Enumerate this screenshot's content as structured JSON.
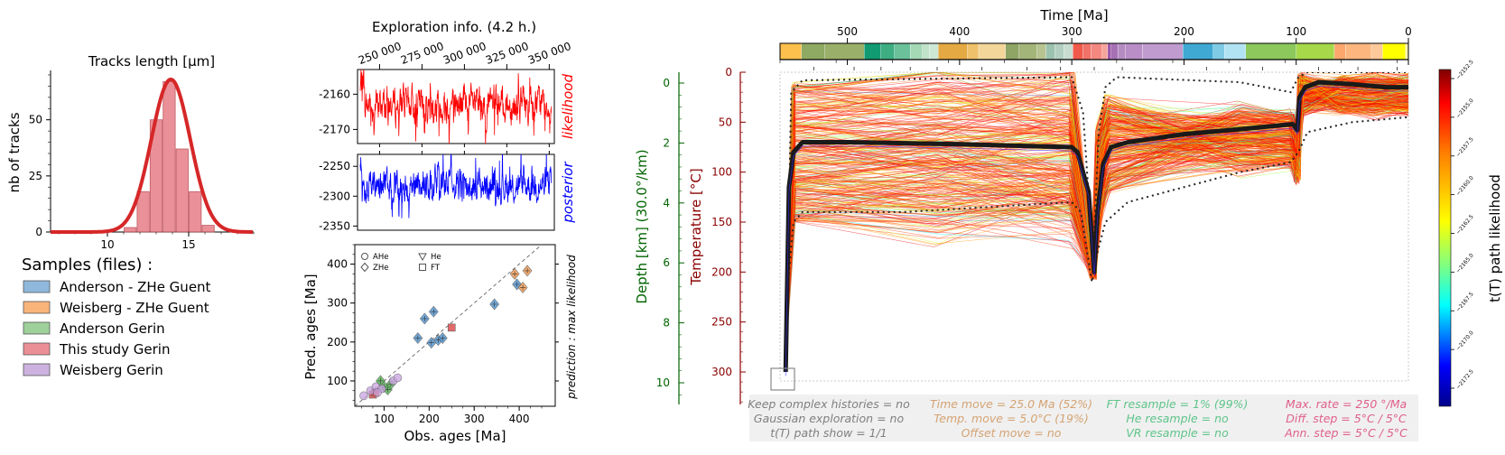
{
  "colors": {
    "red": "#d62728",
    "likelihood": "#ff0000",
    "posterior": "#0000ff",
    "depth_axis": "#006400",
    "temp_axis": "#8b0000",
    "best_path": "#1a1a1a",
    "settings1": "#7f7f7f",
    "settings2": "#d4a373",
    "settings3": "#5ec48a",
    "settings4": "#e0608a"
  },
  "chart_data": [
    {
      "id": "tracks",
      "type": "bar",
      "title": "Tracks length [µm]",
      "xlabel": "",
      "ylabel": "nb of tracks",
      "xlim": [
        6.5,
        19
      ],
      "ylim": [
        0,
        72
      ],
      "xticks": [
        10,
        15
      ],
      "yticks": [
        0,
        25,
        50
      ],
      "bins": [
        {
          "x0": 11.0,
          "x1": 11.8,
          "value": 2
        },
        {
          "x0": 11.8,
          "x1": 12.6,
          "value": 18
        },
        {
          "x0": 12.6,
          "x1": 13.4,
          "value": 50
        },
        {
          "x0": 13.4,
          "x1": 14.2,
          "value": 67
        },
        {
          "x0": 14.2,
          "x1": 15.0,
          "value": 37
        },
        {
          "x0": 15.0,
          "x1": 15.8,
          "value": 18
        },
        {
          "x0": 15.8,
          "x1": 16.6,
          "value": 3
        }
      ],
      "fit": {
        "type": "normal",
        "mean": 13.9,
        "peak": 68,
        "sigma": 1.2
      }
    },
    {
      "id": "exploration",
      "type": "line",
      "title": "Exploration info. (4.2 h.)",
      "xlim": [
        237000,
        353000
      ],
      "xticks": [
        250000,
        275000,
        300000,
        325000,
        350000
      ],
      "xtick_labels": [
        "250 000",
        "275 000",
        "300 000",
        "325 000",
        "350 000"
      ],
      "series": [
        {
          "name": "likelihood",
          "ylim": [
            -2174,
            -2153
          ],
          "yticks": [
            -2160,
            -2170
          ],
          "mean": -2163,
          "noise": 4
        },
        {
          "name": "posterior",
          "ylim": [
            -2357,
            -2230
          ],
          "yticks": [
            -2250,
            -2300,
            -2350
          ],
          "mean": -2282,
          "noise": 22
        }
      ]
    },
    {
      "id": "ages",
      "type": "scatter",
      "xlabel": "Obs. ages [Ma]",
      "ylabel": "Pred. ages [Ma]",
      "right_label": "prediction : max likelihood",
      "xlim": [
        35,
        480
      ],
      "ylim": [
        35,
        450
      ],
      "xticks": [
        100,
        200,
        300,
        400
      ],
      "yticks": [
        100,
        200,
        300,
        400
      ],
      "legend": [
        "AHe",
        "He",
        "ZHe",
        "FT"
      ],
      "series": [
        {
          "name": "Anderson - ZHe Guent",
          "color": "#5a9bd4",
          "marker": "diamond",
          "points": [
            [
              175,
              210
            ],
            [
              190,
              260
            ],
            [
              205,
              198
            ],
            [
              210,
              278
            ],
            [
              220,
              205
            ],
            [
              230,
              210
            ],
            [
              345,
              297
            ],
            [
              395,
              348
            ]
          ]
        },
        {
          "name": "Weisberg - ZHe Guent",
          "color": "#f5a05a",
          "marker": "diamond",
          "points": [
            [
              390,
              375
            ],
            [
              408,
              340
            ],
            [
              418,
              383
            ]
          ]
        },
        {
          "name": "Anderson Gerin",
          "color": "#5cb85c",
          "marker": "diamond",
          "points": [
            [
              92,
              100
            ],
            [
              100,
              85
            ],
            [
              108,
              78
            ],
            [
              115,
              92
            ]
          ]
        },
        {
          "name": "This study Gerin",
          "color": "#e05a5a",
          "marker": "square",
          "points": [
            [
              250,
              237
            ],
            [
              75,
              65
            ],
            [
              80,
              70
            ]
          ]
        },
        {
          "name": "Weisberg Gerin",
          "color": "#c8a2e0",
          "marker": "circle",
          "points": [
            [
              55,
              62
            ],
            [
              70,
              75
            ],
            [
              82,
              85
            ],
            [
              95,
              80
            ],
            [
              120,
              100
            ],
            [
              130,
              108
            ],
            [
              85,
              70
            ]
          ]
        }
      ]
    },
    {
      "id": "tT",
      "type": "line",
      "title": "Time [Ma]",
      "ylabel_temp": "Temperature [°C]",
      "ylabel_depth": "Depth [km] (30.0°/km)",
      "colorbar_label": "t(T) path likelihood",
      "colorbar_ticks": [
        "−2152.5",
        "−2155.0",
        "−2157.5",
        "−2160.0",
        "−2162.5",
        "−2165.0",
        "−2167.5",
        "−2170.0",
        "−2172.5"
      ],
      "xlim": [
        560,
        0
      ],
      "ylim": [
        320,
        0
      ],
      "xticks": [
        500,
        400,
        300,
        200,
        100,
        0
      ],
      "yticks": [
        0,
        50,
        100,
        150,
        200,
        250,
        300
      ],
      "depth_ticks": [
        0,
        2,
        4,
        6,
        8,
        10
      ],
      "best_path": [
        [
          555,
          300
        ],
        [
          552,
          115
        ],
        [
          548,
          80
        ],
        [
          540,
          70
        ],
        [
          500,
          70
        ],
        [
          400,
          72
        ],
        [
          300,
          75
        ],
        [
          295,
          80
        ],
        [
          285,
          120
        ],
        [
          280,
          200
        ],
        [
          277,
          140
        ],
        [
          272,
          92
        ],
        [
          265,
          75
        ],
        [
          250,
          70
        ],
        [
          200,
          62
        ],
        [
          150,
          57
        ],
        [
          103,
          52
        ],
        [
          99,
          58
        ],
        [
          97,
          25
        ],
        [
          92,
          15
        ],
        [
          80,
          10
        ],
        [
          50,
          12
        ],
        [
          20,
          15
        ],
        [
          0,
          15
        ]
      ],
      "upper_envelope": [
        [
          554,
          250
        ],
        [
          550,
          20
        ],
        [
          540,
          8
        ],
        [
          300,
          5
        ],
        [
          290,
          40
        ],
        [
          281,
          190
        ],
        [
          276,
          60
        ],
        [
          270,
          15
        ],
        [
          260,
          5
        ],
        [
          150,
          10
        ],
        [
          105,
          20
        ],
        [
          98,
          5
        ],
        [
          90,
          0
        ],
        [
          0,
          0
        ]
      ],
      "lower_envelope": [
        [
          555,
          300
        ],
        [
          552,
          200
        ],
        [
          548,
          150
        ],
        [
          540,
          140
        ],
        [
          450,
          140
        ],
        [
          300,
          130
        ],
        [
          292,
          140
        ],
        [
          282,
          210
        ],
        [
          277,
          180
        ],
        [
          270,
          150
        ],
        [
          250,
          130
        ],
        [
          150,
          100
        ],
        [
          105,
          90
        ],
        [
          98,
          80
        ],
        [
          90,
          60
        ],
        [
          50,
          50
        ],
        [
          0,
          45
        ]
      ],
      "timescale": [
        {
          "t0": 560,
          "t1": 541,
          "color": "#fdc04c"
        },
        {
          "t0": 541,
          "t1": 520,
          "color": "#8faa63"
        },
        {
          "t0": 520,
          "t1": 485,
          "color": "#9aaf6a"
        },
        {
          "t0": 485,
          "t1": 470,
          "color": "#129b73"
        },
        {
          "t0": 470,
          "t1": 458,
          "color": "#3eae82"
        },
        {
          "t0": 458,
          "t1": 444,
          "color": "#6ac19a"
        },
        {
          "t0": 444,
          "t1": 433,
          "color": "#a5d8b5"
        },
        {
          "t0": 433,
          "t1": 427,
          "color": "#bfe2c9"
        },
        {
          "t0": 427,
          "t1": 419,
          "color": "#cde8d5"
        },
        {
          "t0": 419,
          "t1": 393,
          "color": "#e5a943"
        },
        {
          "t0": 393,
          "t1": 383,
          "color": "#efc16b"
        },
        {
          "t0": 383,
          "t1": 359,
          "color": "#f2d69a"
        },
        {
          "t0": 359,
          "t1": 347,
          "color": "#8ea565"
        },
        {
          "t0": 347,
          "t1": 331,
          "color": "#a4b57a"
        },
        {
          "t0": 331,
          "t1": 323,
          "color": "#b7c491"
        },
        {
          "t0": 323,
          "t1": 315,
          "color": "#9bc2ae"
        },
        {
          "t0": 315,
          "t1": 307,
          "color": "#b2cfc1"
        },
        {
          "t0": 307,
          "t1": 299,
          "color": "#c8dcd0"
        },
        {
          "t0": 299,
          "t1": 290,
          "color": "#ef5a4b"
        },
        {
          "t0": 290,
          "t1": 283,
          "color": "#f07268"
        },
        {
          "t0": 283,
          "t1": 273,
          "color": "#f28880"
        },
        {
          "t0": 273,
          "t1": 268,
          "color": "#f6a49b"
        },
        {
          "t0": 268,
          "t1": 265,
          "color": "#9b55a8"
        },
        {
          "t0": 265,
          "t1": 259,
          "color": "#a670b4"
        },
        {
          "t0": 259,
          "t1": 252,
          "color": "#b58cc2"
        },
        {
          "t0": 252,
          "t1": 237,
          "color": "#b98ec6"
        },
        {
          "t0": 237,
          "t1": 201,
          "color": "#bf9bd0"
        },
        {
          "t0": 201,
          "t1": 174,
          "color": "#3fa9d3"
        },
        {
          "t0": 174,
          "t1": 164,
          "color": "#7fcbe6"
        },
        {
          "t0": 164,
          "t1": 145,
          "color": "#b2e3f3"
        },
        {
          "t0": 145,
          "t1": 100,
          "color": "#8cc85b"
        },
        {
          "t0": 100,
          "t1": 66,
          "color": "#a6d84a"
        },
        {
          "t0": 66,
          "t1": 56,
          "color": "#fda76c"
        },
        {
          "t0": 56,
          "t1": 33,
          "color": "#fdb77e"
        },
        {
          "t0": 33,
          "t1": 23,
          "color": "#fdc89a"
        },
        {
          "t0": 23,
          "t1": 2.6,
          "color": "#ffff00"
        },
        {
          "t0": 2.6,
          "t1": 0,
          "color": "#fff2ae"
        }
      ]
    }
  ],
  "legend": {
    "title": "Samples (files) :",
    "items": [
      {
        "label": "Anderson - ZHe Guent",
        "color": "#8fb8dc"
      },
      {
        "label": "Weisberg - ZHe Guent",
        "color": "#f9b47a"
      },
      {
        "label": "Anderson Gerin",
        "color": "#9ed09a"
      },
      {
        "label": "This study Gerin",
        "color": "#eb8f96"
      },
      {
        "label": "Weisberg Gerin",
        "color": "#cdb2e0"
      }
    ]
  },
  "exploration_labels": {
    "likelihood": "likelihood",
    "posterior": "posterior"
  },
  "settings": {
    "col1": [
      "Keep complex histories = no",
      "Gaussian exploration = no",
      "t(T) path show = 1/1"
    ],
    "col2": [
      "Time move = 25.0 Ma (52%)",
      "Temp. move = 5.0°C (19%)",
      "Offset move = no"
    ],
    "col3": [
      "FT resample = 1% (99%)",
      "He resample = no",
      "VR resample = no"
    ],
    "col4": [
      "Max. rate = 250 °/Ma",
      "Diff. step = 5°C / 5°C",
      "Ann. step = 5°C / 5°C"
    ]
  }
}
